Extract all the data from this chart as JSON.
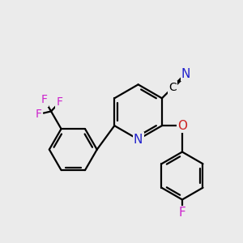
{
  "background_color": "#ebebeb",
  "atom_colors": {
    "C": "#000000",
    "N": "#2222cc",
    "O": "#cc2222",
    "F": "#cc22cc"
  },
  "bond_color": "#000000",
  "bond_width": 1.6,
  "figsize": [
    3.0,
    3.0
  ],
  "dpi": 100,
  "xlim": [
    0,
    10
  ],
  "ylim": [
    0,
    10
  ]
}
